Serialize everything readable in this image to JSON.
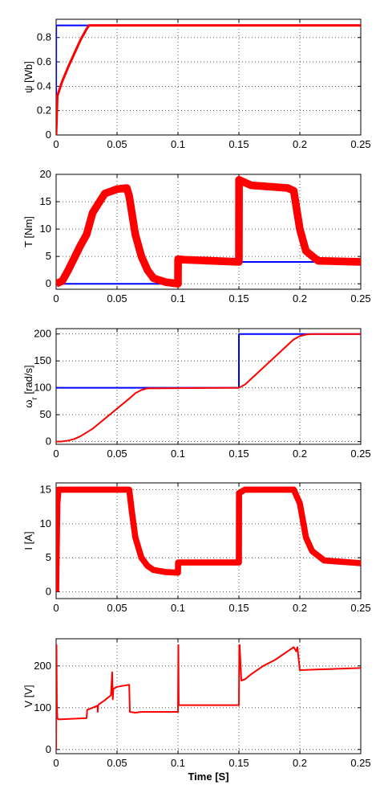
{
  "chart_data": [
    {
      "type": "line",
      "ylabel": "ψ [Wb]",
      "xlim": [
        0,
        0.25
      ],
      "ylim": [
        0,
        0.95
      ],
      "xticks": [
        0,
        0.05,
        0.1,
        0.15,
        0.2,
        0.25
      ],
      "xticklabels": [
        "0",
        "0.05",
        "0.1",
        "0.15",
        "0.2",
        "0.25"
      ],
      "yticks": [
        0,
        0.2,
        0.4,
        0.6,
        0.8
      ],
      "yticklabels": [
        "0",
        "0.2",
        "0.4",
        "0.6",
        "0.8"
      ],
      "grid": true,
      "series": [
        {
          "color": "#0000ff",
          "ripple": 0,
          "x": [
            0,
            0.0001,
            0.25
          ],
          "y": [
            0,
            0.9,
            0.9
          ]
        },
        {
          "color": "#ff0000",
          "ripple": 0.01,
          "x": [
            0,
            0.001,
            0.005,
            0.01,
            0.015,
            0.02,
            0.025,
            0.027,
            0.25
          ],
          "y": [
            0,
            0.32,
            0.44,
            0.56,
            0.67,
            0.78,
            0.87,
            0.9,
            0.9
          ]
        }
      ]
    },
    {
      "type": "line",
      "ylabel": "T [Nm]",
      "xlim": [
        0,
        0.25
      ],
      "ylim": [
        -1,
        20
      ],
      "xticks": [
        0,
        0.05,
        0.1,
        0.15,
        0.2,
        0.25
      ],
      "xticklabels": [
        "0",
        "0.05",
        "0.1",
        "0.15",
        "0.2",
        "0.25"
      ],
      "yticks": [
        0,
        5,
        10,
        15,
        20
      ],
      "yticklabels": [
        "0",
        "5",
        "10",
        "15",
        "20"
      ],
      "grid": true,
      "series": [
        {
          "color": "#0000ff",
          "ripple": 0,
          "x": [
            0,
            0.1,
            0.1,
            0.15,
            0.15,
            0.25
          ],
          "y": [
            0,
            0,
            4,
            4,
            4,
            4
          ]
        },
        {
          "color": "#ff0000",
          "ripple": 0.7,
          "x": [
            0,
            0.005,
            0.01,
            0.02,
            0.025,
            0.03,
            0.04,
            0.05,
            0.058,
            0.06,
            0.065,
            0.07,
            0.075,
            0.08,
            0.09,
            0.1,
            0.1001,
            0.105,
            0.15,
            0.1501,
            0.155,
            0.16,
            0.19,
            0.195,
            0.2,
            0.205,
            0.215,
            0.25
          ],
          "y": [
            0,
            0.5,
            2.5,
            7,
            9,
            13,
            16.5,
            17.3,
            17.5,
            16,
            9,
            5,
            2.5,
            1,
            0.3,
            0,
            4.5,
            4.4,
            4,
            19,
            18.5,
            18,
            17.5,
            17,
            10,
            6,
            4.2,
            4
          ]
        }
      ]
    },
    {
      "type": "line",
      "ylabel": "ω_r [rad/s]",
      "xlim": [
        0,
        0.25
      ],
      "ylim": [
        -5,
        210
      ],
      "xticks": [
        0,
        0.05,
        0.1,
        0.15,
        0.2,
        0.25
      ],
      "xticklabels": [
        "0",
        "0.05",
        "0.1",
        "0.15",
        "0.2",
        "0.25"
      ],
      "yticks": [
        0,
        50,
        100,
        150,
        200
      ],
      "yticklabels": [
        "0",
        "50",
        "100",
        "150",
        "200"
      ],
      "grid": true,
      "series": [
        {
          "color": "#0000ff",
          "ripple": 0,
          "x": [
            0,
            0.15,
            0.15,
            0.25
          ],
          "y": [
            100,
            100,
            200,
            200
          ]
        },
        {
          "color": "#ff0000",
          "ripple": 0,
          "x": [
            0,
            0.005,
            0.01,
            0.015,
            0.02,
            0.03,
            0.06,
            0.065,
            0.07,
            0.075,
            0.15,
            0.155,
            0.195,
            0.2,
            0.205,
            0.21,
            0.25
          ],
          "y": [
            0,
            0.5,
            2,
            5,
            10,
            24,
            80,
            90,
            96,
            99,
            100,
            106,
            190,
            196,
            199,
            200,
            200
          ]
        }
      ]
    },
    {
      "type": "line",
      "ylabel": "I [A]",
      "xlim": [
        0,
        0.25
      ],
      "ylim": [
        -1,
        16
      ],
      "xticks": [
        0,
        0.05,
        0.1,
        0.15,
        0.2,
        0.25
      ],
      "xticklabels": [
        "0",
        "0.05",
        "0.1",
        "0.15",
        "0.2",
        "0.25"
      ],
      "yticks": [
        0,
        5,
        10,
        15
      ],
      "yticklabels": [
        "0",
        "5",
        "10",
        "15"
      ],
      "grid": true,
      "series": [
        {
          "color": "#ff0000",
          "ripple": 0.45,
          "x": [
            0,
            0.001,
            0.002,
            0.055,
            0.06,
            0.062,
            0.065,
            0.07,
            0.075,
            0.08,
            0.09,
            0.1,
            0.1001,
            0.15,
            0.1501,
            0.155,
            0.195,
            0.2,
            0.205,
            0.21,
            0.22,
            0.25
          ],
          "y": [
            0,
            13,
            15,
            15,
            15,
            12,
            8,
            5,
            3.8,
            3.2,
            2.9,
            2.8,
            4.3,
            4.3,
            14.5,
            15,
            15,
            13,
            8,
            6,
            4.6,
            4.2
          ]
        }
      ]
    },
    {
      "type": "line",
      "ylabel": "V [V]",
      "xlabel": "Time [S]",
      "xlim": [
        0,
        0.25
      ],
      "ylim": [
        -10,
        265
      ],
      "xticks": [
        0,
        0.05,
        0.1,
        0.15,
        0.2,
        0.25
      ],
      "xticklabels": [
        "0",
        "0.05",
        "0.1",
        "0.15",
        "0.2",
        "0.25"
      ],
      "yticks": [
        0,
        100,
        200
      ],
      "yticklabels": [
        "0",
        "100",
        "200"
      ],
      "grid": true,
      "series": [
        {
          "color": "#ff0000",
          "ripple": 0,
          "x": [
            0,
            0.0003,
            0.0006,
            0.001,
            0.002,
            0.025,
            0.0255,
            0.03,
            0.034,
            0.0341,
            0.0345,
            0.035,
            0.04,
            0.045,
            0.046,
            0.0465,
            0.047,
            0.05,
            0.06,
            0.0605,
            0.065,
            0.07,
            0.1,
            0.1003,
            0.1006,
            0.101,
            0.15,
            0.1503,
            0.1506,
            0.152,
            0.155,
            0.16,
            0.17,
            0.18,
            0.19,
            0.195,
            0.197,
            0.198,
            0.2,
            0.25
          ],
          "y": [
            0,
            250,
            110,
            75,
            72,
            75,
            95,
            100,
            105,
            90,
            105,
            108,
            118,
            130,
            185,
            120,
            145,
            150,
            155,
            90,
            88,
            90,
            90,
            250,
            108,
            106,
            106,
            250,
            250,
            165,
            168,
            180,
            200,
            215,
            235,
            245,
            235,
            245,
            190,
            195
          ]
        }
      ]
    }
  ]
}
